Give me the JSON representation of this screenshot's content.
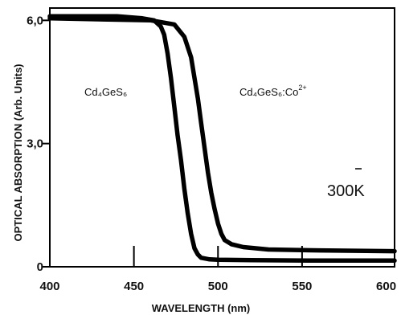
{
  "chart_data": {
    "type": "line",
    "title": "",
    "xlabel": "WAVELENGTH (nm)",
    "ylabel": "OPTICAL ABSORPTION (Arb. Units)",
    "xlim": [
      400,
      605
    ],
    "ylim": [
      0,
      6.3
    ],
    "x_ticks": [
      400,
      450,
      500,
      550,
      600
    ],
    "x_tick_labels": [
      "400",
      "450",
      "500",
      "550",
      "600"
    ],
    "y_ticks": [
      0,
      3.0,
      6.0
    ],
    "y_tick_labels": [
      "0",
      "3,0",
      "6,0"
    ],
    "grid": false,
    "series": [
      {
        "name": "Cd4GeS6",
        "x": [
          400,
          440,
          455,
          462,
          466,
          468,
          470,
          472,
          474,
          476,
          478,
          480,
          482,
          484,
          486,
          488,
          490,
          495,
          500,
          520,
          560,
          605
        ],
        "y": [
          6.1,
          6.1,
          6.05,
          6.0,
          5.85,
          5.65,
          5.2,
          4.6,
          3.9,
          3.2,
          2.6,
          1.9,
          1.3,
          0.8,
          0.45,
          0.3,
          0.22,
          0.18,
          0.17,
          0.16,
          0.15,
          0.15
        ]
      },
      {
        "name": "Cd4GeS6:Co2+",
        "x": [
          400,
          460,
          474,
          480,
          484,
          486,
          488,
          490,
          492,
          494,
          496,
          498,
          500,
          502,
          504,
          508,
          515,
          530,
          560,
          605
        ],
        "y": [
          6.05,
          6.0,
          5.9,
          5.6,
          5.1,
          4.6,
          4.1,
          3.5,
          2.9,
          2.3,
          1.8,
          1.4,
          1.05,
          0.8,
          0.65,
          0.55,
          0.48,
          0.42,
          0.4,
          0.38
        ]
      }
    ],
    "annotations": {
      "series_label_1": "Cd₄GeS₆",
      "series_label_2": "Cd₄GeS₆:Co",
      "series_label_2_sup": "2+",
      "temperature": "300K"
    }
  }
}
